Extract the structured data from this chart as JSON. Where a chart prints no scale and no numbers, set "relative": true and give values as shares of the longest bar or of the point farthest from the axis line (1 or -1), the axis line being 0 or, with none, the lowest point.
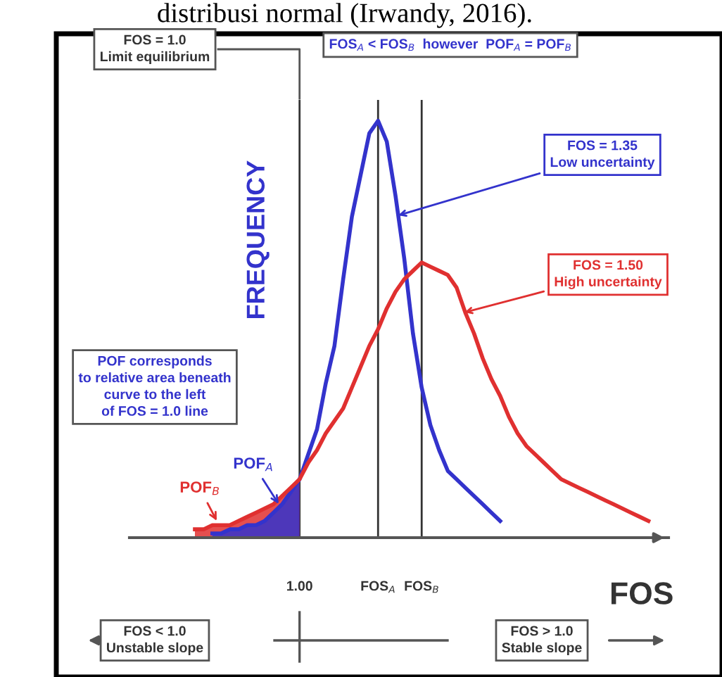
{
  "chart_data": {
    "type": "line",
    "relative": true,
    "xlabel": "FOS",
    "ylabel": "FREQUENCY",
    "categories": [
      null,
      null,
      null,
      null,
      null,
      null,
      null,
      null,
      null,
      null,
      null,
      null,
      "1.00",
      null,
      null,
      null,
      null,
      null,
      null,
      null,
      null,
      "FOS$_{A}$",
      null,
      null,
      null,
      null,
      "FOS$_{B}$",
      null,
      null,
      null,
      null,
      null,
      null,
      null,
      null,
      null,
      null,
      null,
      null,
      null,
      null,
      null,
      null,
      null,
      null,
      null,
      null,
      null,
      null,
      null,
      null,
      null,
      null
    ],
    "series": [
      {
        "color": "#3333cc",
        "values": [
          null,
          null,
          0.01,
          0.01,
          0.02,
          0.02,
          0.03,
          0.03,
          0.04,
          0.06,
          0.08,
          0.11,
          0.14,
          0.2,
          0.26,
          0.37,
          0.46,
          0.62,
          0.77,
          0.87,
          0.97,
          1.0,
          0.95,
          0.82,
          0.67,
          0.49,
          0.36,
          0.27,
          0.21,
          0.16,
          0.14,
          0.12,
          0.1,
          0.08,
          0.06,
          0.04,
          null,
          null,
          null,
          null,
          null,
          null,
          null,
          null,
          null,
          null,
          null,
          null,
          null,
          null,
          null,
          null,
          null
        ]
      },
      {
        "color": "#e03030",
        "values": [
          0.02,
          0.02,
          0.03,
          0.03,
          0.03,
          0.04,
          0.05,
          0.06,
          0.07,
          0.08,
          0.1,
          0.12,
          0.14,
          0.18,
          0.21,
          0.25,
          0.28,
          0.31,
          0.36,
          0.41,
          0.46,
          0.5,
          0.55,
          0.59,
          0.62,
          0.64,
          0.66,
          0.65,
          0.64,
          0.63,
          0.6,
          0.54,
          0.49,
          0.43,
          0.38,
          0.34,
          0.29,
          0.25,
          0.22,
          0.2,
          0.18,
          0.16,
          0.14,
          0.13,
          0.12,
          0.11,
          0.1,
          0.09,
          0.08,
          0.07,
          0.06,
          0.05,
          0.04
        ]
      },
      {
        "type": "area",
        "color": "#e03030",
        "values": [
          0.02,
          0.02,
          0.03,
          0.03,
          0.03,
          0.04,
          0.05,
          0.06,
          0.07,
          0.08,
          0.1,
          0.12,
          0.14,
          null,
          null,
          null,
          null,
          null,
          null,
          null,
          null,
          null,
          null,
          null,
          null,
          null,
          null,
          null,
          null,
          null,
          null,
          null,
          null,
          null,
          null,
          null,
          null,
          null,
          null,
          null,
          null,
          null,
          null,
          null,
          null,
          null,
          null,
          null,
          null,
          null,
          null,
          null,
          null
        ]
      },
      {
        "type": "area",
        "color": "#3333cc",
        "values": [
          null,
          null,
          0.01,
          0.01,
          0.02,
          0.02,
          0.03,
          0.03,
          0.04,
          0.06,
          0.08,
          0.11,
          0.14,
          null,
          null,
          null,
          null,
          null,
          null,
          null,
          null,
          null,
          null,
          null,
          null,
          null,
          null,
          null,
          null,
          null,
          null,
          null,
          null,
          null,
          null,
          null,
          null,
          null,
          null,
          null,
          null,
          null,
          null,
          null,
          null,
          null,
          null,
          null,
          null,
          null,
          null,
          null,
          null
        ]
      }
    ],
    "ref_lines": [
      {
        "axis": "x",
        "value": "1.00",
        "color": "#333333"
      },
      {
        "axis": "x",
        "value": "FOS$_{A}$",
        "color": "#333333"
      },
      {
        "axis": "x",
        "value": "FOS$_{B}$",
        "color": "#333333"
      }
    ],
    "marker": "none",
    "line_style": "solid",
    "grid": false,
    "annotations": [
      "distribusi normal (Irwandy, 2016).",
      "FOS = 1.0\nLimit equilibrium",
      "FOS$_{A}$ < FOS$_{B}$  however  POF$_{A}$ = POF$_{B}$",
      "FOS = 1.35\nLow uncertainty",
      "FOS = 1.50\nHigh uncertainty",
      "POF corresponds\nto relative area beneath\ncurve to the left\nof FOS = 1.0 line",
      "POF$_{A}$",
      "POF$_{B}$",
      "FOS < 1.0\nUnstable slope",
      "FOS > 1.0\nStable slope"
    ]
  }
}
